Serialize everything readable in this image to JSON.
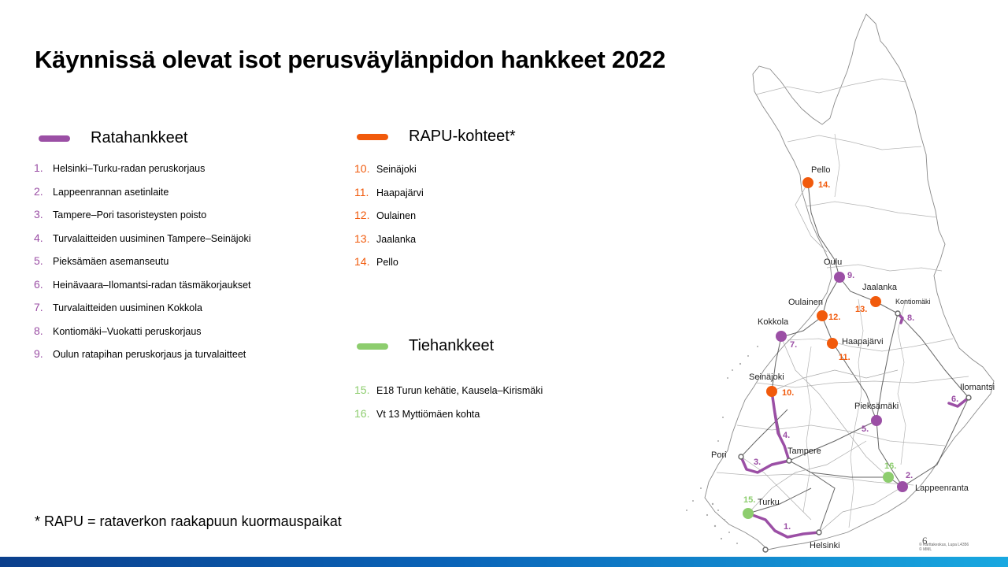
{
  "title": "Käynnissä olevat isot perusväylänpidon hankkeet 2022",
  "colors": {
    "rail": "#9b4fa5",
    "rapu": "#f15a0c",
    "road": "#8dcd6e",
    "title_text": "#000000"
  },
  "legend": {
    "rail": {
      "heading": "Ratahankkeet",
      "items": [
        {
          "num": "1.",
          "label": "Helsinki–Turku-radan  peruskorjaus"
        },
        {
          "num": "2.",
          "label": "Lappeenrannan  asetinlaite"
        },
        {
          "num": "3.",
          "label": "Tampere–Pori tasoristeysten  poisto"
        },
        {
          "num": "4.",
          "label": "Turvalaitteiden  uusiminen Tampere–Seinäjoki"
        },
        {
          "num": "5.",
          "label": "Pieksämäen asemanseutu"
        },
        {
          "num": "6.",
          "label": "Heinävaara–Ilomantsi-radan  täsmäkorjaukset"
        },
        {
          "num": "7.",
          "label": "Turvalaitteiden  uusiminen Kokkola"
        },
        {
          "num": "8.",
          "label": "Kontiomäki–Vuokatti  peruskorjaus"
        },
        {
          "num": "9.",
          "label": "Oulun  ratapihan  peruskorjaus  ja turvalaitteet"
        }
      ]
    },
    "rapu": {
      "heading": "RAPU-kohteet*",
      "items": [
        {
          "num": "10.",
          "label": "Seinäjoki"
        },
        {
          "num": "11.",
          "label": "Haapajärvi"
        },
        {
          "num": "12.",
          "label": "Oulainen"
        },
        {
          "num": "13.",
          "label": "Jaalanka"
        },
        {
          "num": "14.",
          "label": "Pello"
        }
      ]
    },
    "road": {
      "heading": "Tiehankkeet",
      "items": [
        {
          "num": "15.",
          "label": "E18  Turun  kehätie,  Kausela–Kirismäki"
        },
        {
          "num": "16.",
          "label": "Vt  13  Myttiömäen  kohta"
        }
      ]
    }
  },
  "footnote": "* RAPU = rataverkon raakapuun kuormauspaikat",
  "map": {
    "places": {
      "pello": "Pello",
      "oulu": "Oulu",
      "jaalanka": "Jaalanka",
      "oulainen": "Oulainen",
      "kontiomaki": "Kontiomäki",
      "kokkola": "Kokkola",
      "haapajarvi": "Haapajärvi",
      "seinajoki": "Seinäjoki",
      "ilomantsi": "Ilomantsi",
      "pieksamaki": "Pieksämäki",
      "pori": "Pori",
      "tampere": "Tampere",
      "lappeenranta": "Lappeenranta",
      "turku": "Turku",
      "helsinki": "Helsinki"
    },
    "markers": {
      "m1": "1.",
      "m2": "2.",
      "m3": "3.",
      "m4": "4.",
      "m5": "5.",
      "m6": "6.",
      "m7": "7.",
      "m8": "8.",
      "m9": "9.",
      "m10": "10.",
      "m11": "11.",
      "m12": "12.",
      "m13": "13.",
      "m14": "14.",
      "m15": "15.",
      "m16": "16."
    }
  },
  "page_number": "6",
  "copyright": "© Karttakeskus, Lupa L4356\n© MML"
}
